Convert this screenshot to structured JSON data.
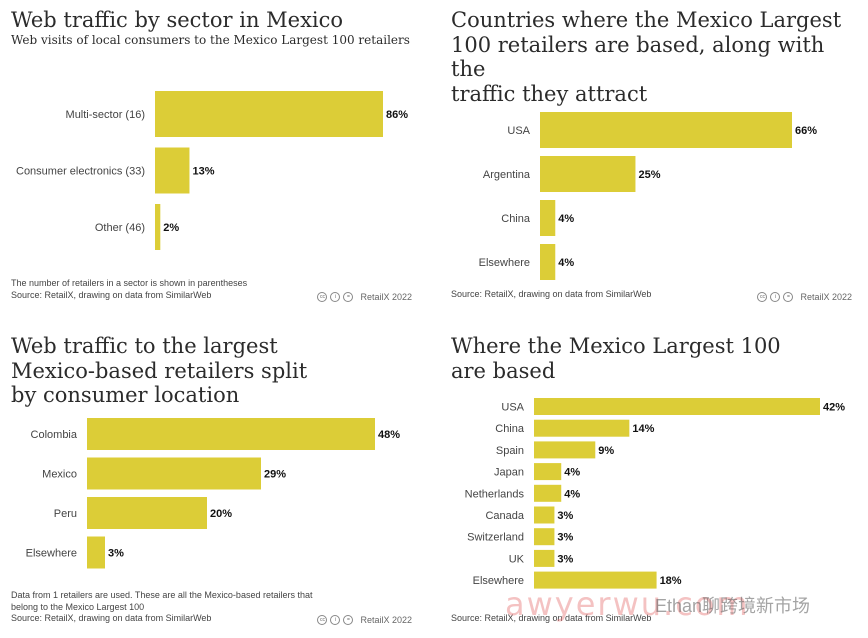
{
  "colors": {
    "bar": "#dccd37",
    "text": "#333333"
  },
  "chart_data": [
    {
      "type": "bar",
      "orientation": "horizontal",
      "title": "Web traffic by sector in Mexico",
      "subtitle": "Web visits of local consumers to the Mexico Largest 100 retailers",
      "categories": [
        "Multi-sector (16)",
        "Consumer electronics (33)",
        "Other (46)"
      ],
      "values": [
        86,
        13,
        2
      ],
      "value_labels": [
        "86%",
        "13%",
        "2%"
      ],
      "notes": [
        "The number of retailers in a sector is shown in parentheses",
        "Source: RetailX, drawing on data from SimilarWeb"
      ],
      "credit": "RetailX 2022",
      "xlim": [
        0,
        86
      ]
    },
    {
      "type": "bar",
      "orientation": "horizontal",
      "title": "Countries where the Mexico Largest\n100 retailers are based, along with the\ntraffic they attract",
      "subtitle": "",
      "categories": [
        "USA",
        "Argentina",
        "China",
        "Elsewhere"
      ],
      "values": [
        66,
        25,
        4,
        4
      ],
      "value_labels": [
        "66%",
        "25%",
        "4%",
        "4%"
      ],
      "notes": [
        "Source: RetailX, drawing on data from SimilarWeb"
      ],
      "credit": "RetailX 2022",
      "xlim": [
        0,
        66
      ]
    },
    {
      "type": "bar",
      "orientation": "horizontal",
      "title": "Web traffic to the largest\nMexico-based retailers split\nby consumer location",
      "subtitle": "",
      "categories": [
        "Colombia",
        "Mexico",
        "Peru",
        "Elsewhere"
      ],
      "values": [
        48,
        29,
        20,
        3
      ],
      "value_labels": [
        "48%",
        "29%",
        "20%",
        "3%"
      ],
      "notes": [
        "Data from 1 retailers are used. These are all the Mexico-based retailers that belong to the Mexico Largest 100",
        "Source: RetailX, drawing on data from SimilarWeb"
      ],
      "credit": "RetailX 2022",
      "xlim": [
        0,
        48
      ]
    },
    {
      "type": "bar",
      "orientation": "horizontal",
      "title": "Where the Mexico Largest 100\nare based",
      "subtitle": "",
      "categories": [
        "USA",
        "China",
        "Spain",
        "Japan",
        "Netherlands",
        "Canada",
        "Switzerland",
        "UK",
        "Elsewhere"
      ],
      "values": [
        42,
        14,
        9,
        4,
        4,
        3,
        3,
        3,
        18
      ],
      "value_labels": [
        "42%",
        "14%",
        "9%",
        "4%",
        "4%",
        "3%",
        "3%",
        "3%",
        "18%"
      ],
      "notes": [
        "Source: RetailX, drawing on data from SimilarWeb"
      ],
      "credit": "",
      "xlim": [
        0,
        42
      ]
    }
  ],
  "watermark": {
    "main": "awyerwu.com",
    "small": "Ethan聊跨境新市场"
  }
}
